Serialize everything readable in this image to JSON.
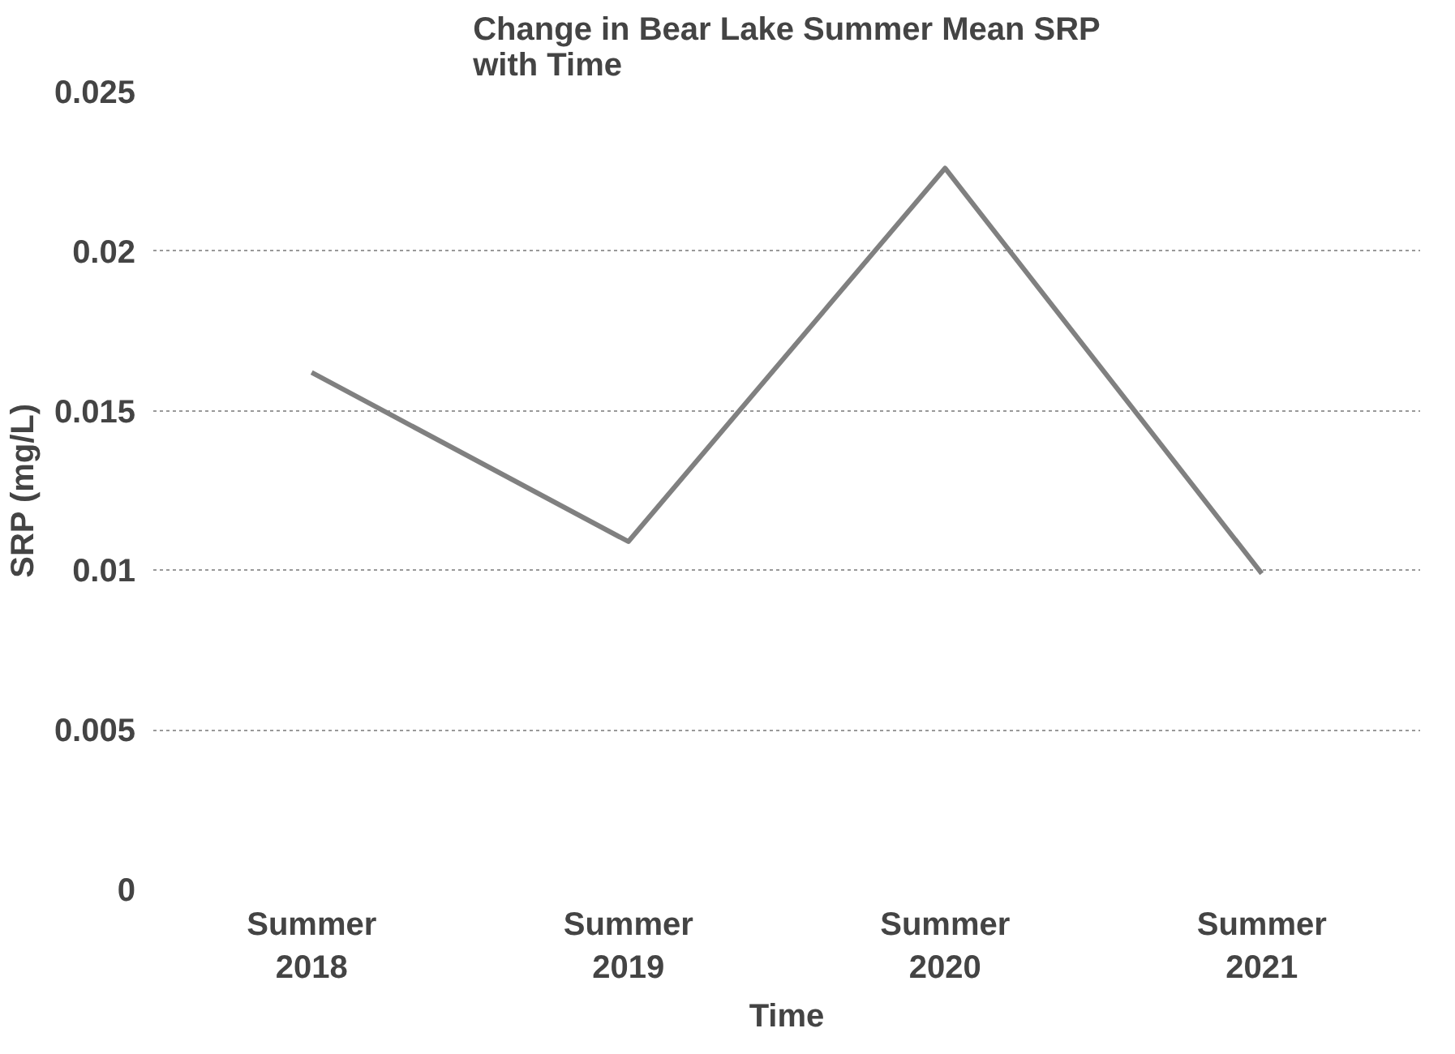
{
  "chart_data": {
    "type": "line",
    "title": "Change in Bear Lake Summer Mean SRP\nwith Time",
    "xlabel": "Time",
    "ylabel": "SRP (mg/L)",
    "categories": [
      "Summer 2018",
      "Summer 2019",
      "Summer 2020",
      "Summer 2021"
    ],
    "series": [
      {
        "color": "#808080",
        "values": [
          0.0162,
          0.0109,
          0.0226,
          0.0099
        ]
      }
    ],
    "ylim": [
      0,
      0.025
    ],
    "yticks": [
      0,
      0.005,
      0.01,
      0.015,
      0.02,
      0.025
    ],
    "grid": "y",
    "marker": "none",
    "line_style": "solid"
  }
}
